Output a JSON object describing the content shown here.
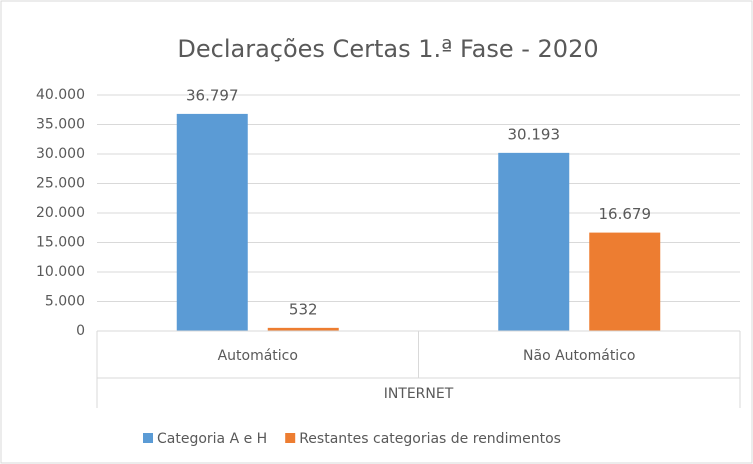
{
  "chart_data": {
    "type": "bar",
    "title": "Declarações Certas 1.ª Fase - 2020",
    "categories": [
      "Automático",
      "Não Automático"
    ],
    "group_label": "INTERNET",
    "series": [
      {
        "name": "Categoria A e H",
        "color": "#5b9bd5",
        "values": [
          36797,
          30193
        ],
        "value_labels": [
          "36.797",
          "30.193"
        ]
      },
      {
        "name": "Restantes categorias de rendimentos",
        "color": "#ed7d31",
        "values": [
          532,
          16679
        ],
        "value_labels": [
          "532",
          "16.679"
        ]
      }
    ],
    "ylim": [
      0,
      40000
    ],
    "yticks": [
      {
        "value": 0,
        "label": "0"
      },
      {
        "value": 5000,
        "label": "5.000"
      },
      {
        "value": 10000,
        "label": "10.000"
      },
      {
        "value": 15000,
        "label": "15.000"
      },
      {
        "value": 20000,
        "label": "20.000"
      },
      {
        "value": 25000,
        "label": "25.000"
      },
      {
        "value": 30000,
        "label": "30.000"
      },
      {
        "value": 35000,
        "label": "35.000"
      },
      {
        "value": 40000,
        "label": "40.000"
      }
    ],
    "grid": true,
    "legend": "bottom"
  }
}
